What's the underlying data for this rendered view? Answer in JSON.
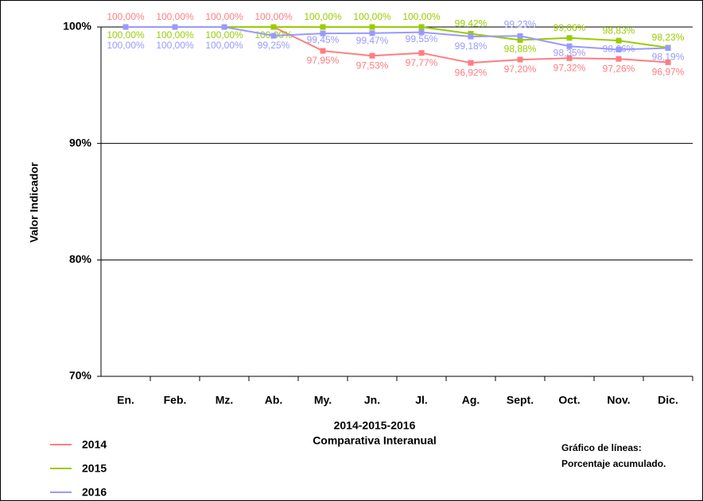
{
  "chart_data": {
    "type": "line",
    "ylabel": "Valor Indicador",
    "xlabel": [
      "2014-2015-2016",
      "Comparativa Interanual"
    ],
    "note": [
      "Gráfico de líneas:",
      "Porcentaje acumulado."
    ],
    "categories": [
      "En.",
      "Feb.",
      "Mz.",
      "Ab.",
      "My.",
      "Jn.",
      "Jl.",
      "Ag.",
      "Sept.",
      "Oct.",
      "Nov.",
      "Dic."
    ],
    "ylim": [
      70,
      100
    ],
    "yticks": [
      {
        "value": 70,
        "label": "70%"
      },
      {
        "value": 80,
        "label": "80%"
      },
      {
        "value": 90,
        "label": "90%"
      },
      {
        "value": 100,
        "label": "100%"
      }
    ],
    "grid": true,
    "legend": "bottom-left",
    "series": [
      {
        "name": "2014",
        "color": "#ff7c80",
        "values": [
          100,
          100,
          100,
          100,
          97.95,
          97.53,
          97.77,
          96.92,
          97.2,
          97.32,
          97.26,
          96.97
        ],
        "value_labels": [
          "100,00%",
          "100,00%",
          "100,00%",
          "100,00%",
          "97,95%",
          "97,53%",
          "97,77%",
          "96,92%",
          "97,20%",
          "97,32%",
          "97,26%",
          "96,97%"
        ]
      },
      {
        "name": "2015",
        "color": "#99cc00",
        "values": [
          100,
          100,
          100,
          100,
          100,
          100,
          100,
          99.42,
          98.88,
          99.06,
          98.83,
          98.23
        ],
        "value_labels": [
          "100,00%",
          "100,00%",
          "100,00%",
          "100,00%",
          "100,00%",
          "100,00%",
          "100,00%",
          "99,42%",
          "98,88%",
          "99,06%",
          "98,83%",
          "98,23%"
        ]
      },
      {
        "name": "2016",
        "color": "#9999ff",
        "values": [
          100,
          100,
          100,
          99.25,
          99.45,
          99.47,
          99.55,
          99.18,
          99.23,
          98.35,
          98.06,
          98.19
        ],
        "value_labels": [
          "100,00%",
          "100,00%",
          "100,00%",
          "99,25%",
          "99,45%",
          "99,47%",
          "99,55%",
          "99,18%",
          "99,23%",
          "98,35%",
          "98,06%",
          "98,19%"
        ]
      }
    ]
  }
}
